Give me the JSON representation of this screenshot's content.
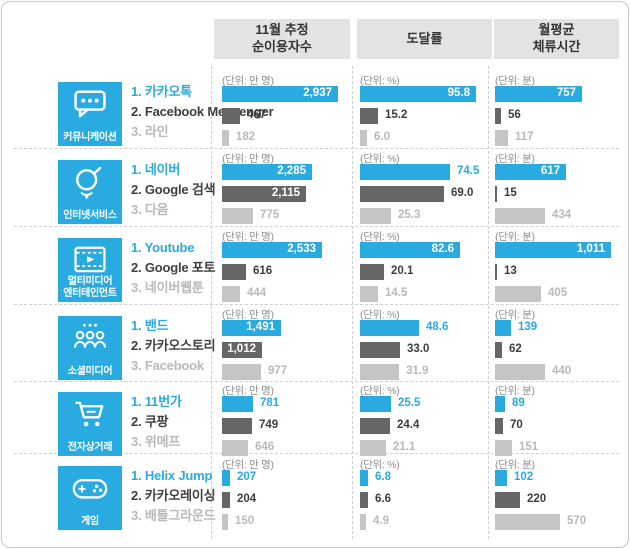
{
  "panel": {
    "border_color": "#c8c8c8",
    "background": "#ffffff"
  },
  "header": {
    "background": "#e3e3e3",
    "columns": [
      {
        "lines": [
          "11월 추정",
          "순이용자수"
        ]
      },
      {
        "lines": [
          "도달률",
          ""
        ]
      },
      {
        "lines": [
          "월평균",
          "체류시간"
        ]
      }
    ]
  },
  "colors": {
    "accent_blue": "#29abe2",
    "rank2_gray": "#666666",
    "rank3_gray": "#c5c5c5",
    "value_dark": "#3d3d3d",
    "value_light": "#b9b9b9",
    "unit_text": "#8f8f8f"
  },
  "chart_data": {
    "type": "bar",
    "orientation": "horizontal",
    "columns": [
      {
        "id": "users",
        "title": "11월 추정 순이용자수",
        "unit": "(단위: 만 명)",
        "max": 2937
      },
      {
        "id": "reach",
        "title": "도달률",
        "unit": "(단위: %)",
        "max": 95.8
      },
      {
        "id": "time",
        "title": "월평균 체류시간",
        "unit": "(단위: 분)",
        "max": 1011
      }
    ],
    "rows": [
      {
        "category": "커뮤니케이션",
        "category_lines": [
          "커뮤니케이션"
        ],
        "icon": "chat-bubble-icon",
        "apps": [
          "카카오톡",
          "Facebook Messenger",
          "라인"
        ],
        "users": {
          "values": [
            2937,
            467,
            182
          ],
          "labels": [
            "2,937",
            "467",
            "182"
          ],
          "inside": [
            true,
            false,
            false
          ]
        },
        "reach": {
          "values": [
            95.8,
            15.2,
            6.0
          ],
          "labels": [
            "95.8",
            "15.2",
            "6.0"
          ],
          "inside": [
            true,
            false,
            false
          ]
        },
        "time": {
          "values": [
            757,
            56,
            117
          ],
          "labels": [
            "757",
            "56",
            "117"
          ],
          "inside": [
            true,
            false,
            false
          ]
        }
      },
      {
        "category": "인터넷서비스",
        "category_lines": [
          "인터넷서비스"
        ],
        "icon": "search-icon",
        "apps": [
          "네이버",
          "Google 검색",
          "다음"
        ],
        "users": {
          "values": [
            2285,
            2115,
            775
          ],
          "labels": [
            "2,285",
            "2,115",
            "775"
          ],
          "inside": [
            true,
            true,
            false
          ]
        },
        "reach": {
          "values": [
            74.5,
            69.0,
            25.3
          ],
          "labels": [
            "74.5",
            "69.0",
            "25.3"
          ],
          "inside": [
            false,
            false,
            false
          ]
        },
        "time": {
          "values": [
            617,
            15,
            434
          ],
          "labels": [
            "617",
            "15",
            "434"
          ],
          "inside": [
            true,
            false,
            false
          ]
        }
      },
      {
        "category": "멀티미디어 엔터테인먼트",
        "category_lines": [
          "멀티미디어",
          "엔터테인먼트"
        ],
        "icon": "film-icon",
        "apps": [
          "Youtube",
          "Google 포토",
          "네이버웹툰"
        ],
        "users": {
          "values": [
            2533,
            616,
            444
          ],
          "labels": [
            "2,533",
            "616",
            "444"
          ],
          "inside": [
            true,
            false,
            false
          ]
        },
        "reach": {
          "values": [
            82.6,
            20.1,
            14.5
          ],
          "labels": [
            "82.6",
            "20.1",
            "14.5"
          ],
          "inside": [
            true,
            false,
            false
          ]
        },
        "time": {
          "values": [
            1011,
            13,
            405
          ],
          "labels": [
            "1,011",
            "13",
            "405"
          ],
          "inside": [
            true,
            false,
            false
          ]
        }
      },
      {
        "category": "소셜미디어",
        "category_lines": [
          "소셜미디어"
        ],
        "icon": "people-icon",
        "apps": [
          "밴드",
          "카카오스토리",
          "Facebook"
        ],
        "users": {
          "values": [
            1491,
            1012,
            977
          ],
          "labels": [
            "1,491",
            "1,012",
            "977"
          ],
          "inside": [
            true,
            true,
            false
          ]
        },
        "reach": {
          "values": [
            48.6,
            33.0,
            31.9
          ],
          "labels": [
            "48.6",
            "33.0",
            "31.9"
          ],
          "inside": [
            false,
            false,
            false
          ]
        },
        "time": {
          "values": [
            139,
            62,
            440
          ],
          "labels": [
            "139",
            "62",
            "440"
          ],
          "inside": [
            false,
            false,
            false
          ]
        }
      },
      {
        "category": "전자상거래",
        "category_lines": [
          "전자상거래"
        ],
        "icon": "cart-icon",
        "apps": [
          "11번가",
          "쿠팡",
          "위메프"
        ],
        "users": {
          "values": [
            781,
            749,
            646
          ],
          "labels": [
            "781",
            "749",
            "646"
          ],
          "inside": [
            false,
            false,
            false
          ]
        },
        "reach": {
          "values": [
            25.5,
            24.4,
            21.1
          ],
          "labels": [
            "25.5",
            "24.4",
            "21.1"
          ],
          "inside": [
            false,
            false,
            false
          ]
        },
        "time": {
          "values": [
            89,
            70,
            151
          ],
          "labels": [
            "89",
            "70",
            "151"
          ],
          "inside": [
            false,
            false,
            false
          ]
        }
      },
      {
        "category": "게임",
        "category_lines": [
          "게임"
        ],
        "icon": "gamepad-icon",
        "apps": [
          "Helix Jump",
          "카카오레이싱",
          "배틀그라운드"
        ],
        "users": {
          "values": [
            207,
            204,
            150
          ],
          "labels": [
            "207",
            "204",
            "150"
          ],
          "inside": [
            false,
            false,
            false
          ]
        },
        "reach": {
          "values": [
            6.8,
            6.6,
            4.9
          ],
          "labels": [
            "6.8",
            "6.6",
            "4.9"
          ],
          "inside": [
            false,
            false,
            false
          ]
        },
        "time": {
          "values": [
            102,
            220,
            570
          ],
          "labels": [
            "102",
            "220",
            "570"
          ],
          "inside": [
            false,
            false,
            false
          ]
        }
      }
    ]
  }
}
